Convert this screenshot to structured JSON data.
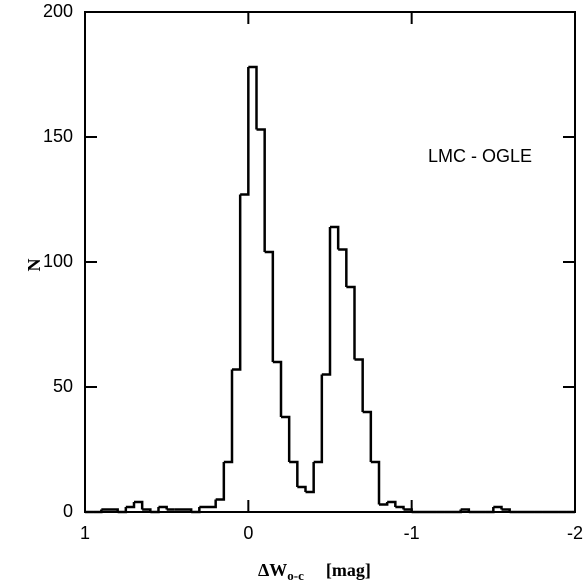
{
  "chart_data": {
    "type": "histogram",
    "annotation": "LMC - OGLE",
    "xlabel": "ΔW",
    "xlabel_sub": "o-c",
    "xlabel_unit": "[mag]",
    "ylabel": "N",
    "bins": [
      -2,
      -1.95,
      -1.9,
      -1.85,
      -1.8,
      -1.75,
      -1.7,
      -1.65,
      -1.6,
      -1.55,
      -1.5,
      -1.45,
      -1.4,
      -1.35,
      -1.3,
      -1.25,
      -1.2,
      -1.15,
      -1.1,
      -1.05,
      -1,
      -0.95,
      -0.9,
      -0.85,
      -0.8,
      -0.75,
      -0.7,
      -0.65,
      -0.6,
      -0.55,
      -0.5,
      -0.45,
      -0.4,
      -0.35,
      -0.3,
      -0.25,
      -0.2,
      -0.15,
      -0.1,
      -0.05,
      0,
      0.05,
      0.1,
      0.15,
      0.2,
      0.25,
      0.3,
      0.35,
      0.4,
      0.45,
      0.5,
      0.55,
      0.6,
      0.65,
      0.7,
      0.75,
      0.8,
      0.85,
      0.9,
      0.95,
      1
    ],
    "values": [
      0,
      0,
      0,
      0,
      0,
      0,
      0,
      0,
      1,
      2,
      0,
      0,
      0,
      1,
      0,
      0,
      0,
      0,
      0,
      0,
      1,
      2,
      4,
      3,
      20,
      40,
      61,
      90,
      105,
      114,
      55,
      20,
      8,
      10,
      20,
      38,
      60,
      104,
      153,
      178,
      127,
      57,
      20,
      5,
      2,
      2,
      0,
      1,
      1,
      1,
      2,
      0,
      1,
      4,
      2,
      0,
      1,
      1,
      0,
      0
    ],
    "color": "#000000",
    "xlim": [
      1,
      -2
    ],
    "xticks": [
      1,
      0,
      -1,
      -2
    ],
    "ylim": [
      0,
      200
    ],
    "yticks": [
      0,
      50,
      100,
      150,
      200
    ]
  }
}
